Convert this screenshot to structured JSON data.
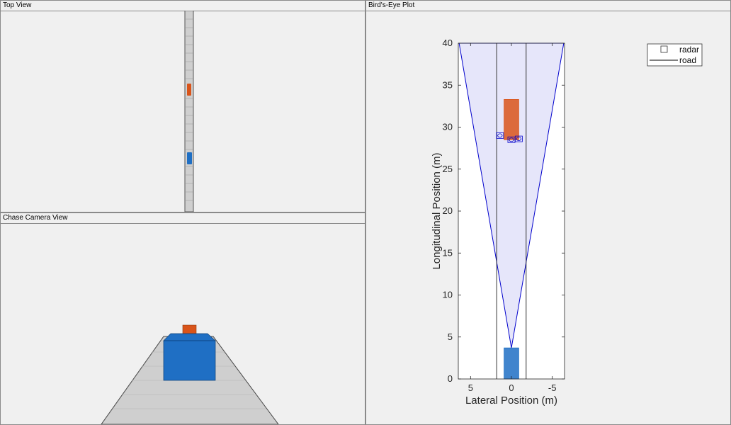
{
  "panels": {
    "top_view_title": "Top View",
    "chase_view_title": "Chase Camera View",
    "bev_title": "Bird's-Eye Plot"
  },
  "colors": {
    "ego_blue": "#1f6fc4",
    "lead_orange": "#d9541a",
    "road_gray": "#cfcfcf",
    "coverage_fill": "#e6e6fa",
    "coverage_edge": "#0000cc"
  },
  "chart_data": {
    "type": "scatter",
    "xlabel": "Lateral Position (m)",
    "ylabel": "Longitudinal Position (m)",
    "xlim": [
      6.5,
      -6.5
    ],
    "ylim": [
      0,
      40
    ],
    "x_ticks": [
      "5",
      "0",
      "-5"
    ],
    "y_ticks": [
      "0",
      "5",
      "10",
      "15",
      "20",
      "25",
      "30",
      "35",
      "40"
    ],
    "x_tick_values": [
      5,
      0,
      -5
    ],
    "y_tick_values": [
      0,
      5,
      10,
      15,
      20,
      25,
      30,
      35,
      40
    ],
    "legend": [
      {
        "name": "radar",
        "marker": "square"
      },
      {
        "name": "road",
        "marker": "line"
      }
    ],
    "legend_position": "top-right",
    "road_boundaries_lateral": [
      1.8,
      -1.8
    ],
    "radar_coverage": {
      "apex": [
        0,
        3.7
      ],
      "left_edge": [
        6.4,
        40
      ],
      "right_edge": [
        -6.4,
        40
      ]
    },
    "ego_vehicle": {
      "lateral_min": -0.9,
      "lateral_max": 0.9,
      "long_min": 0,
      "long_max": 3.7
    },
    "lead_vehicle": {
      "lateral_min": -0.9,
      "lateral_max": 0.9,
      "long_min": 28.5,
      "long_max": 33.3
    },
    "radar_detections": [
      {
        "lateral": 1.4,
        "longitudinal": 29.0
      },
      {
        "lateral": 0.0,
        "longitudinal": 28.5
      },
      {
        "lateral": -0.9,
        "longitudinal": 28.6
      }
    ]
  }
}
